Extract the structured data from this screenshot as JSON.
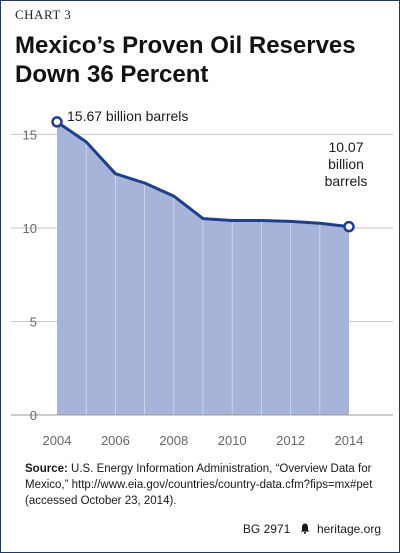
{
  "header": {
    "chart_label": "CHART 3",
    "title_line1": "Mexico’s Proven Oil Reserves",
    "title_line2": "Down 36 Percent"
  },
  "chart_data": {
    "type": "area",
    "x": [
      2004,
      2005,
      2006,
      2007,
      2008,
      2009,
      2010,
      2011,
      2012,
      2013,
      2014
    ],
    "values": [
      15.67,
      14.6,
      12.9,
      12.4,
      11.7,
      10.5,
      10.4,
      10.4,
      10.35,
      10.25,
      10.07
    ],
    "xticks": [
      "2004",
      "2006",
      "2008",
      "2010",
      "2012",
      "2014"
    ],
    "yticks": [
      "0",
      "5",
      "10",
      "15"
    ],
    "ylim": [
      0,
      17
    ],
    "xlim": [
      2004,
      2014
    ],
    "grid": "horizontal",
    "colors": {
      "fill": "#a6b4d9",
      "line": "#1f3f8a",
      "marker_fill": "#ffffff"
    },
    "annotations": {
      "start": "15.67 billion barrels",
      "end_line1": "10.07",
      "end_line2": "billion",
      "end_line3": "barrels"
    }
  },
  "source": {
    "label": "Source:",
    "text": "U.S. Energy Information Administration, “Overview Data for Mexico,” http://www.eia.gov/countries/country-data.cfm?fips=mx#pet (accessed October 23, 2014)."
  },
  "footer": {
    "code": "BG 2971",
    "bell_icon": "bell-icon",
    "site": "heritage.org"
  }
}
